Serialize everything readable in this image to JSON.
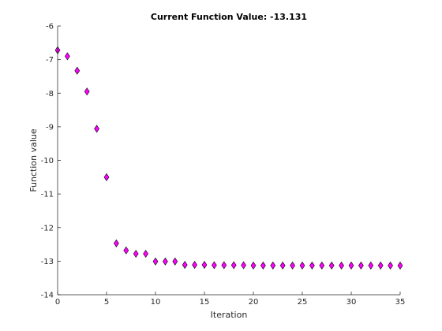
{
  "chart_data": {
    "type": "scatter",
    "title": "Current Function Value: -13.131",
    "xlabel": "Iteration",
    "ylabel": "Function value",
    "xlim": [
      0,
      35
    ],
    "ylim": [
      -14,
      -6
    ],
    "xticks": [
      0,
      5,
      10,
      15,
      20,
      25,
      30,
      35
    ],
    "yticks": [
      -14,
      -13,
      -12,
      -11,
      -10,
      -9,
      -8,
      -7,
      -6
    ],
    "grid": false,
    "marker": "diamond",
    "marker_color": "#ff00ff",
    "marker_edge_color": "#000000",
    "x": [
      0,
      1,
      2,
      3,
      4,
      5,
      6,
      7,
      8,
      9,
      10,
      11,
      12,
      13,
      14,
      15,
      16,
      17,
      18,
      19,
      20,
      21,
      22,
      23,
      24,
      25,
      26,
      27,
      28,
      29,
      30,
      31,
      32,
      33,
      34,
      35
    ],
    "y": [
      -6.72,
      -6.9,
      -7.33,
      -7.95,
      -9.06,
      -10.5,
      -12.47,
      -12.68,
      -12.78,
      -12.78,
      -13.01,
      -13.01,
      -13.01,
      -13.11,
      -13.11,
      -13.11,
      -13.12,
      -13.12,
      -13.12,
      -13.12,
      -13.13,
      -13.13,
      -13.13,
      -13.13,
      -13.13,
      -13.13,
      -13.13,
      -13.13,
      -13.13,
      -13.13,
      -13.13,
      -13.13,
      -13.13,
      -13.13,
      -13.13,
      -13.131
    ]
  }
}
